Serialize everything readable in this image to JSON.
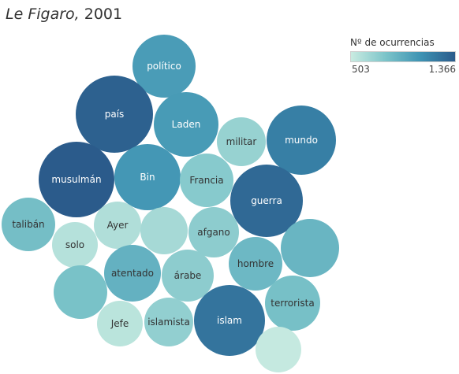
{
  "chart_data": {
    "type": "bubble",
    "title_source": "Le Figaro,",
    "title_year": "2001",
    "legend": {
      "title": "Nº de ocurrencias",
      "min_label": "503",
      "max_label": "1.366",
      "min": 503,
      "max": 1366,
      "color_low": "#c9ebe1",
      "color_high": "#2b5b8b"
    },
    "bubbles": [
      {
        "label": "político",
        "value": 1050
      },
      {
        "label": "país",
        "value": 1340
      },
      {
        "label": "Laden",
        "value": 1060
      },
      {
        "label": "militar",
        "value": 700
      },
      {
        "label": "mundo",
        "value": 1200
      },
      {
        "label": "musulmán",
        "value": 1366
      },
      {
        "label": "Bin",
        "value": 1080
      },
      {
        "label": "Francia",
        "value": 760
      },
      {
        "label": "guerra",
        "value": 1300
      },
      {
        "label": "talibán",
        "value": 840
      },
      {
        "label": "Ayer",
        "value": 600
      },
      {
        "label": "",
        "value": 640
      },
      {
        "label": "afgano",
        "value": 740
      },
      {
        "label": "solo",
        "value": 580
      },
      {
        "label": "",
        "value": 900
      },
      {
        "label": "hombre",
        "value": 880
      },
      {
        "label": "atentado",
        "value": 920
      },
      {
        "label": "árabe",
        "value": 740
      },
      {
        "label": "",
        "value": 820
      },
      {
        "label": "terrorista",
        "value": 830
      },
      {
        "label": "Jefe",
        "value": 560
      },
      {
        "label": "islamista",
        "value": 720
      },
      {
        "label": "islam",
        "value": 1250
      },
      {
        "label": "",
        "value": 520
      }
    ]
  }
}
